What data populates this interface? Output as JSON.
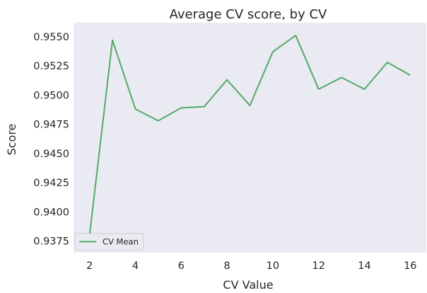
{
  "chart_data": {
    "type": "line",
    "title": "Average CV score, by CV",
    "xlabel": "CV Value",
    "ylabel": "Score",
    "x": [
      2,
      3,
      4,
      5,
      6,
      7,
      8,
      9,
      10,
      11,
      12,
      13,
      14,
      15,
      16
    ],
    "series": [
      {
        "name": "CV Mean",
        "values": [
          0.938,
          0.9547,
          0.9488,
          0.9478,
          0.9489,
          0.949,
          0.9513,
          0.9491,
          0.9537,
          0.9551,
          0.9505,
          0.9515,
          0.9505,
          0.9528,
          0.9517
        ],
        "color": "#55a868"
      }
    ],
    "xlim": [
      1.3,
      16.7
    ],
    "ylim": [
      0.9365,
      0.9562
    ],
    "xticks": [
      2,
      4,
      6,
      8,
      10,
      12,
      14,
      16
    ],
    "xtick_labels": [
      "2",
      "4",
      "6",
      "8",
      "10",
      "12",
      "14",
      "16"
    ],
    "yticks": [
      0.9375,
      0.94,
      0.9425,
      0.945,
      0.9475,
      0.95,
      0.9525,
      0.955
    ],
    "ytick_labels": [
      "0.9375",
      "0.9400",
      "0.9425",
      "0.9450",
      "0.9475",
      "0.9500",
      "0.9525",
      "0.9550"
    ],
    "grid": false,
    "legend_position": "lower-left",
    "background_color": "#eaeaf2"
  }
}
